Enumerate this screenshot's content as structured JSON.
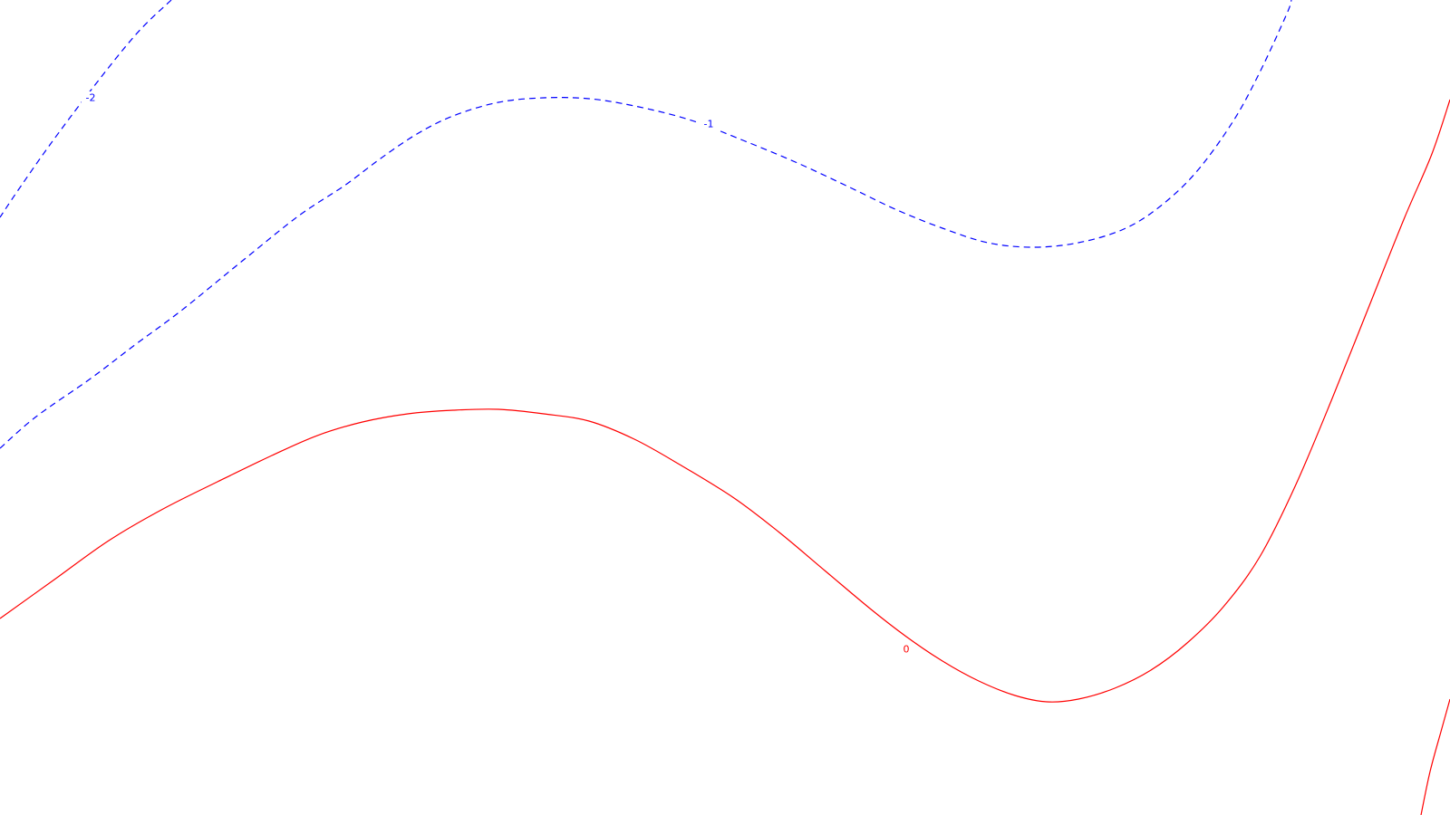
{
  "chart_data": {
    "type": "contour",
    "title": "",
    "xlabel": "",
    "ylabel": "",
    "grid": false,
    "levels": [
      {
        "level": -2,
        "label": "-2",
        "color": "#0000ff",
        "linestyle": "dashed",
        "segments": [
          [
            [
              189,
              0
            ],
            [
              150,
              38
            ],
            [
              100,
              100
            ],
            [
              55,
              160
            ],
            [
              20,
              210
            ],
            [
              0,
              240
            ]
          ]
        ]
      },
      {
        "level": -1,
        "label": "-1",
        "color": "#0000ff",
        "linestyle": "dashed",
        "segments": [
          [
            [
              0,
              495
            ],
            [
              40,
              460
            ],
            [
              100,
              418
            ],
            [
              150,
              380
            ],
            [
              200,
              343
            ],
            [
              270,
              286
            ],
            [
              330,
              238
            ],
            [
              380,
              205
            ],
            [
              420,
              175
            ],
            [
              460,
              148
            ],
            [
              500,
              128
            ],
            [
              550,
              113
            ],
            [
              600,
              108
            ],
            [
              650,
              109
            ],
            [
              700,
              117
            ],
            [
              760,
              132
            ],
            [
              820,
              155
            ],
            [
              880,
              180
            ],
            [
              940,
              208
            ],
            [
              990,
              232
            ],
            [
              1040,
              252
            ],
            [
              1090,
              268
            ],
            [
              1140,
              273
            ],
            [
              1190,
              268
            ],
            [
              1240,
              253
            ],
            [
              1280,
              228
            ],
            [
              1320,
              190
            ],
            [
              1360,
              135
            ],
            [
              1390,
              80
            ],
            [
              1420,
              15
            ],
            [
              1425,
              0
            ]
          ]
        ]
      },
      {
        "level": 0,
        "label": "0",
        "color": "#ff0000",
        "linestyle": "solid",
        "segments": [
          [
            [
              0,
              683
            ],
            [
              60,
              640
            ],
            [
              120,
              597
            ],
            [
              180,
              562
            ],
            [
              240,
              532
            ],
            [
              300,
              503
            ],
            [
              350,
              481
            ],
            [
              400,
              466
            ],
            [
              450,
              457
            ],
            [
              500,
              453
            ],
            [
              550,
              452
            ],
            [
              600,
              457
            ],
            [
              650,
              465
            ],
            [
              700,
              485
            ],
            [
              750,
              513
            ],
            [
              810,
              550
            ],
            [
              860,
              588
            ],
            [
              910,
              630
            ],
            [
              960,
              672
            ],
            [
              1000,
              703
            ],
            [
              1040,
              730
            ],
            [
              1080,
              752
            ],
            [
              1120,
              768
            ],
            [
              1155,
              775
            ],
            [
              1190,
              772
            ],
            [
              1230,
              760
            ],
            [
              1270,
              740
            ],
            [
              1310,
              710
            ],
            [
              1350,
              670
            ],
            [
              1390,
              615
            ],
            [
              1430,
              535
            ],
            [
              1470,
              440
            ],
            [
              1510,
              340
            ],
            [
              1550,
              240
            ],
            [
              1580,
              170
            ],
            [
              1600,
              110
            ]
          ],
          [
            [
              1600,
              772
            ],
            [
              1590,
              808
            ],
            [
              1578,
              852
            ],
            [
              1568,
              900
            ]
          ]
        ]
      }
    ],
    "labels": [
      {
        "text": "-2",
        "level": -2,
        "color": "#0000ff",
        "at": [
          100,
          108
        ]
      },
      {
        "text": "-1",
        "level": -1,
        "color": "#0000ff",
        "at": [
          782,
          137
        ]
      },
      {
        "text": "0",
        "level": 0,
        "color": "#ff0000",
        "at": [
          1000,
          717
        ]
      }
    ]
  }
}
